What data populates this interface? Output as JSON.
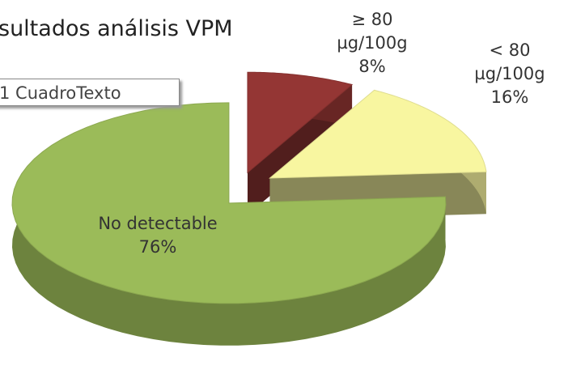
{
  "chart_data": {
    "type": "pie",
    "title": "sultados análisis VPM",
    "categories": [
      "≥ 80 µg/100g",
      "< 80 µg/100g",
      "No detectable"
    ],
    "values": [
      8,
      16,
      76
    ],
    "value_labels": [
      "8%",
      "16%",
      "76%"
    ],
    "colors": [
      "#943634",
      "#f8f6a0",
      "#9bbb59"
    ]
  },
  "text_box": "1 CuadroTexto"
}
